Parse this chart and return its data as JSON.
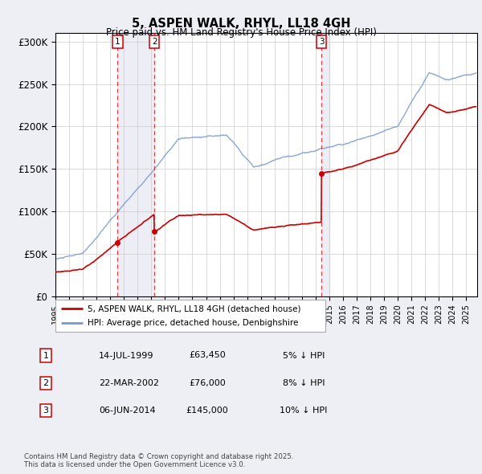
{
  "title": "5, ASPEN WALK, RHYL, LL18 4GH",
  "subtitle": "Price paid vs. HM Land Registry's House Price Index (HPI)",
  "ylim": [
    0,
    310000
  ],
  "yticks": [
    0,
    50000,
    100000,
    150000,
    200000,
    250000,
    300000
  ],
  "ytick_labels": [
    "£0",
    "£50K",
    "£100K",
    "£150K",
    "£200K",
    "£250K",
    "£300K"
  ],
  "xlim_start": 1995.0,
  "xlim_end": 2025.8,
  "transactions": [
    {
      "num": 1,
      "date": "14-JUL-1999",
      "price": 63450,
      "year": 1999.54
    },
    {
      "num": 2,
      "date": "22-MAR-2002",
      "price": 76000,
      "year": 2002.22
    },
    {
      "num": 3,
      "date": "06-JUN-2014",
      "price": 145000,
      "year": 2014.43
    }
  ],
  "legend_line1": "5, ASPEN WALK, RHYL, LL18 4GH (detached house)",
  "legend_line2": "HPI: Average price, detached house, Denbighshire",
  "footnote": "Contains HM Land Registry data © Crown copyright and database right 2025.\nThis data is licensed under the Open Government Licence v3.0.",
  "table_rows": [
    {
      "num": 1,
      "date": "14-JUL-1999",
      "price": "£63,450",
      "pct": "5% ↓ HPI"
    },
    {
      "num": 2,
      "date": "22-MAR-2002",
      "price": "£76,000",
      "pct": "8% ↓ HPI"
    },
    {
      "num": 3,
      "date": "06-JUN-2014",
      "price": "£145,000",
      "pct": "10% ↓ HPI"
    }
  ],
  "bg_color": "#eeeef5",
  "plot_bg": "#ffffff",
  "grid_color": "#cccccc",
  "red_line_color": "#cc0000",
  "blue_line_color": "#7799cc",
  "dashed_color": "#dd2222",
  "span_color": "#bbbbdd"
}
